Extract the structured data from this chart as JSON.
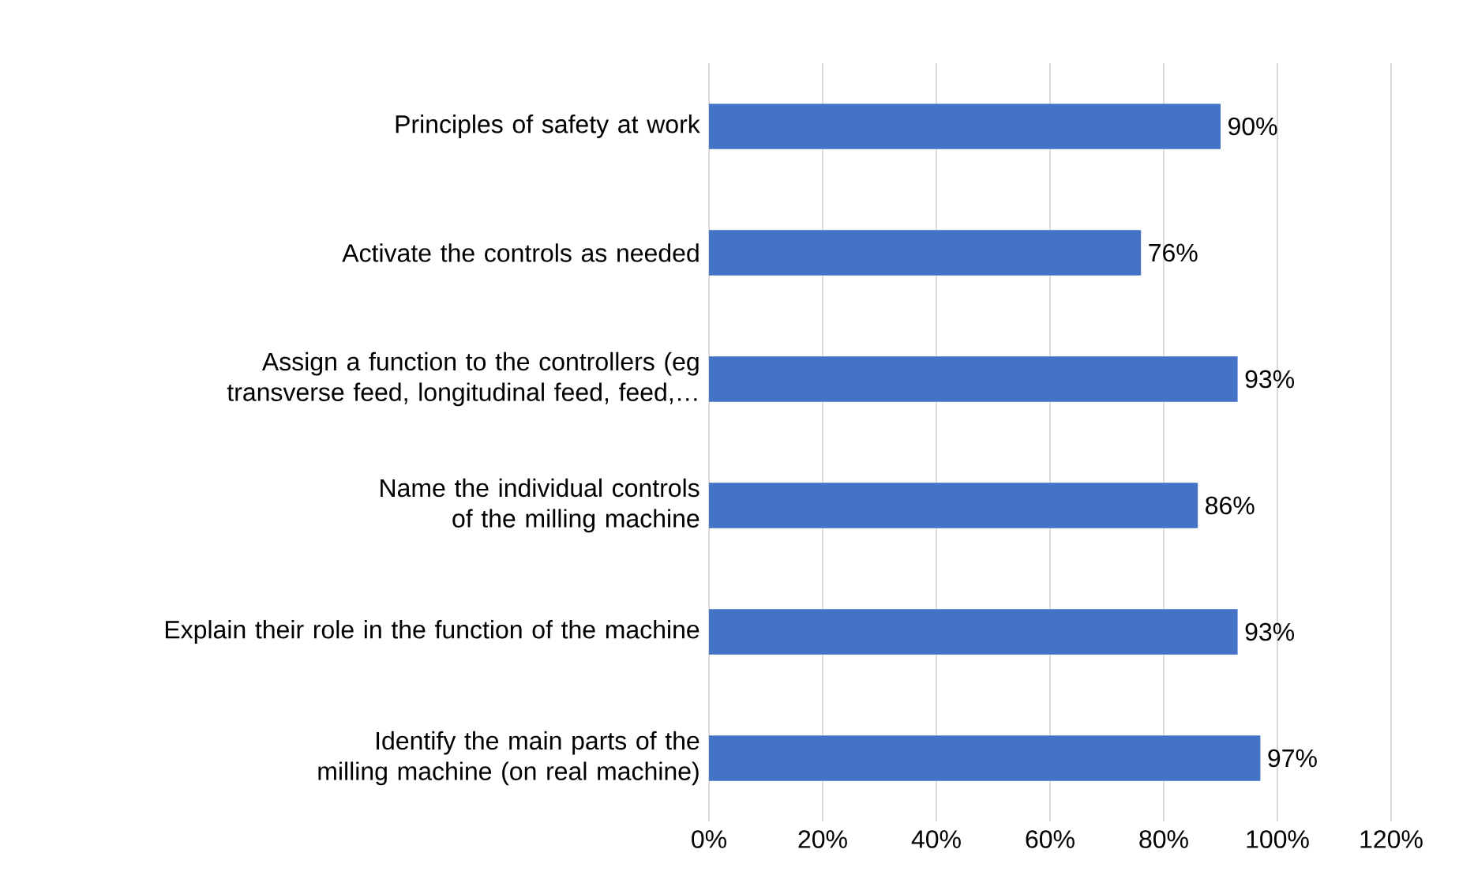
{
  "chart_data": {
    "type": "bar",
    "orientation": "horizontal",
    "categories": [
      "Principles of safety at work",
      "Activate the controls as needed",
      "Assign a function to the controllers (eg transverse feed, longitudinal feed, feed,…",
      "Name the individual controls of the milling machine",
      "Explain their role in the function of the machine",
      "Identify the main parts of the milling machine (on real machine)"
    ],
    "values": [
      90,
      76,
      93,
      86,
      93,
      97
    ],
    "value_labels": [
      "90%",
      "76%",
      "93%",
      "86%",
      "93%",
      "97%"
    ],
    "color": "#4472c4",
    "xlim": [
      0,
      120
    ],
    "xticks": [
      {
        "value": 0,
        "label": "0%"
      },
      {
        "value": 20,
        "label": "20%"
      },
      {
        "value": 40,
        "label": "40%"
      },
      {
        "value": 60,
        "label": "60%"
      },
      {
        "value": 80,
        "label": "80%"
      },
      {
        "value": 100,
        "label": "100%"
      },
      {
        "value": 120,
        "label": "120%"
      }
    ],
    "grid": "x"
  }
}
